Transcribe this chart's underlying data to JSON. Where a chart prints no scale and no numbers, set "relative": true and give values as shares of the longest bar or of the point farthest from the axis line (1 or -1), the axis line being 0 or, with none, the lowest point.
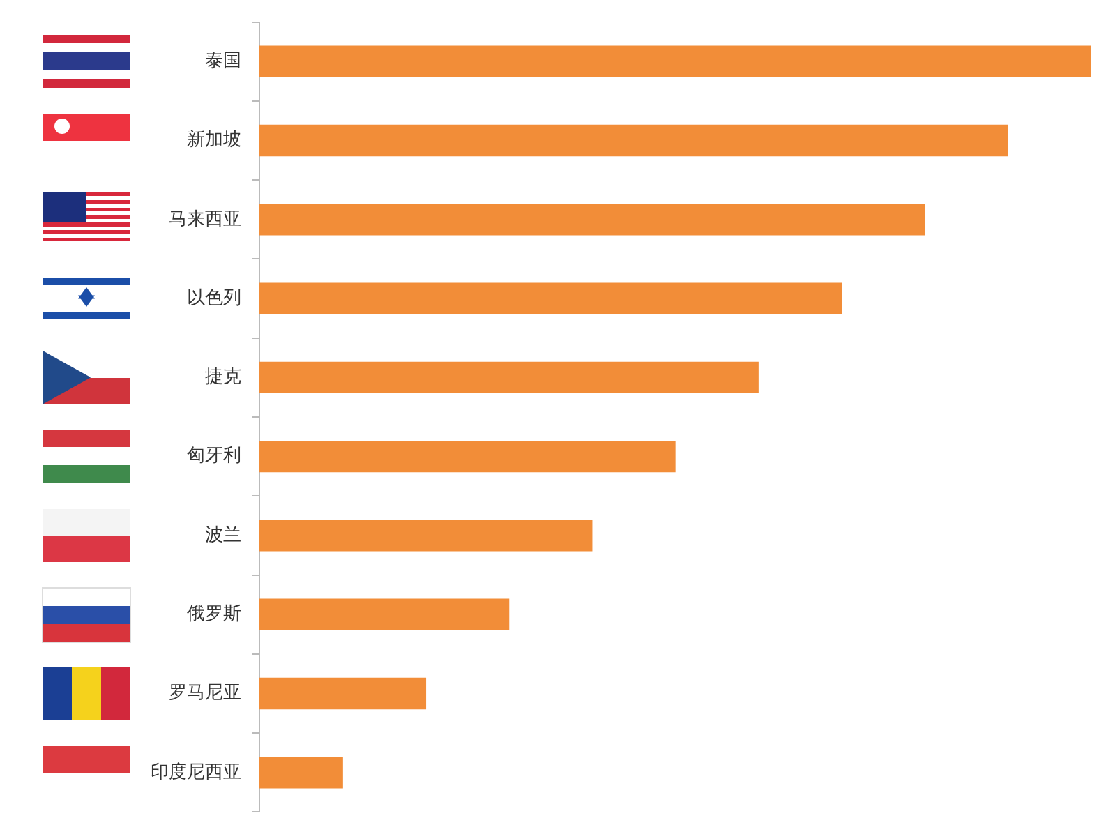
{
  "chart_data": {
    "type": "bar",
    "orientation": "horizontal",
    "relative": true,
    "categories": [
      "泰国",
      "新加坡",
      "马来西亚",
      "以色列",
      "捷克",
      "匈牙利",
      "波兰",
      "俄罗斯",
      "罗马尼亚",
      "印度尼西亚"
    ],
    "values": [
      1,
      0.9,
      0.8,
      0.7,
      0.6,
      0.5,
      0.4,
      0.3,
      0.2,
      0.1
    ],
    "color": "#f28d38",
    "grid": false,
    "legend": false
  }
}
